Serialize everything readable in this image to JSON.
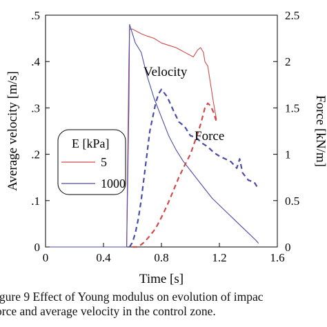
{
  "chart_data": {
    "type": "line",
    "xlabel": "Time [s]",
    "ylabel_left": "Average velocity [m/s]",
    "ylabel_right": "Force [kN/m]",
    "xlim": [
      0,
      1.6
    ],
    "ylim_left": [
      0,
      0.5
    ],
    "ylim_right": [
      0,
      2.5
    ],
    "xticks": [
      "0",
      "0.4",
      "0.8",
      "1.2",
      "1.6"
    ],
    "yticks_left": [
      "0",
      ".1",
      ".2",
      ".3",
      ".4",
      ".5"
    ],
    "yticks_right": [
      "0",
      "0.5",
      "1",
      "1.5",
      "2",
      "2.5"
    ],
    "grid": false,
    "legend": {
      "title": "E [kPa]",
      "position": "middle-left",
      "entries": [
        {
          "label": "5",
          "color": "#d04a4a"
        },
        {
          "label": "1000",
          "color": "#4a4aa8"
        }
      ]
    },
    "annotations": [
      {
        "text": "Velocity",
        "x": 0.85,
        "y": 0.38
      },
      {
        "text": "Force",
        "x": 1.17,
        "y": 0.24
      }
    ],
    "series": [
      {
        "name": "5",
        "quantity": "velocity",
        "axis": "left",
        "style": "solid",
        "color": "#d04a4a",
        "x": [
          0,
          0.56,
          0.575,
          0.58,
          0.6,
          0.63,
          0.66,
          0.7,
          0.75,
          0.8,
          0.85,
          0.9,
          0.93,
          0.96,
          0.99,
          1.02,
          1.05,
          1.07,
          1.09,
          1.1,
          1.12,
          1.14,
          1.16,
          1.18
        ],
        "y": [
          0,
          0,
          0.4,
          0.47,
          0.47,
          0.465,
          0.46,
          0.455,
          0.45,
          0.44,
          0.435,
          0.43,
          0.425,
          0.42,
          0.415,
          0.41,
          0.425,
          0.43,
          0.42,
          0.4,
          0.39,
          0.35,
          0.31,
          0.275
        ]
      },
      {
        "name": "1000",
        "quantity": "velocity",
        "axis": "left",
        "style": "solid",
        "color": "#4a4aa8",
        "x": [
          0,
          0.56,
          0.575,
          0.58,
          0.6,
          0.62,
          0.64,
          0.66,
          0.7,
          0.75,
          0.8,
          0.85,
          0.9,
          0.95,
          1.0,
          1.05,
          1.1,
          1.15,
          1.2,
          1.25,
          1.3,
          1.35,
          1.4,
          1.45,
          1.47
        ],
        "y": [
          0,
          0,
          0.3,
          0.48,
          0.46,
          0.44,
          0.43,
          0.42,
          0.37,
          0.32,
          0.28,
          0.24,
          0.21,
          0.185,
          0.165,
          0.145,
          0.125,
          0.105,
          0.09,
          0.075,
          0.06,
          0.045,
          0.03,
          0.015,
          0.008
        ]
      },
      {
        "name": "5",
        "quantity": "force",
        "axis": "right",
        "style": "dashed",
        "color": "#d04a4a",
        "x": [
          0.6,
          0.64,
          0.68,
          0.72,
          0.76,
          0.8,
          0.84,
          0.88,
          0.92,
          0.96,
          1.0,
          1.04,
          1.07,
          1.1,
          1.12,
          1.14,
          1.16,
          1.18
        ],
        "y": [
          0,
          0,
          0.05,
          0.12,
          0.2,
          0.32,
          0.45,
          0.6,
          0.75,
          0.88,
          1.0,
          1.18,
          1.32,
          1.5,
          1.55,
          1.52,
          1.45,
          1.35
        ]
      },
      {
        "name": "1000",
        "quantity": "force",
        "axis": "right",
        "style": "dashed",
        "color": "#4a4aa8",
        "x": [
          0.58,
          0.6,
          0.62,
          0.64,
          0.66,
          0.68,
          0.7,
          0.72,
          0.74,
          0.76,
          0.78,
          0.8,
          0.84,
          0.88,
          0.92,
          0.96,
          1.0,
          1.04,
          1.08,
          1.12,
          1.16,
          1.2,
          1.24,
          1.28,
          1.32,
          1.34,
          1.36,
          1.4,
          1.44,
          1.46
        ],
        "y": [
          0,
          0.05,
          0.15,
          0.3,
          0.5,
          0.75,
          1.0,
          1.25,
          1.4,
          1.55,
          1.65,
          1.7,
          1.62,
          1.48,
          1.35,
          1.3,
          1.2,
          1.18,
          1.12,
          1.08,
          1.02,
          0.98,
          0.95,
          0.92,
          0.85,
          0.95,
          0.8,
          0.72,
          0.7,
          0.65
        ]
      }
    ]
  },
  "caption": {
    "line1": "igure 9 Effect of Young modulus on evolution of impac",
    "line2": "orce and average velocity in the control zone."
  }
}
